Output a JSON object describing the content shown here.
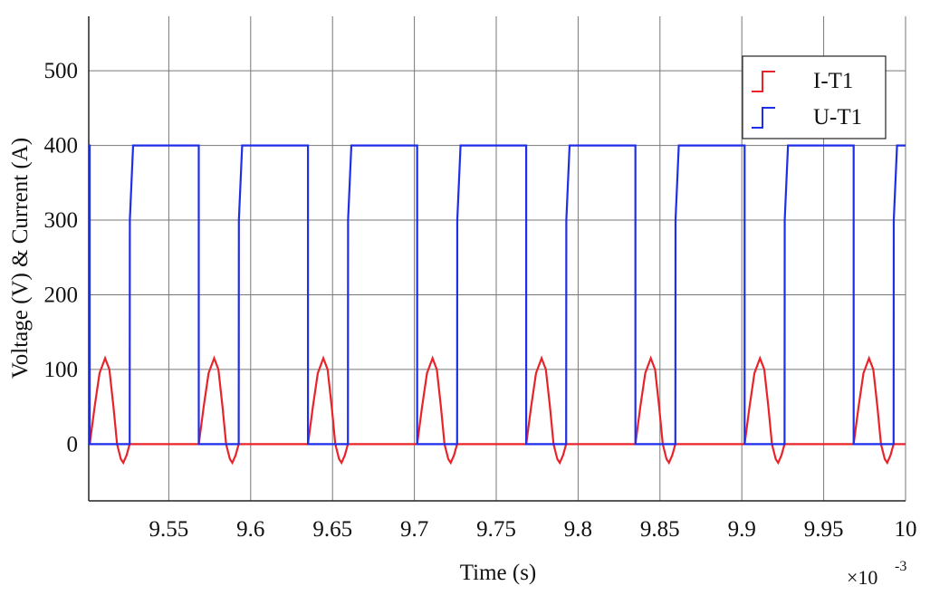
{
  "chart_data": {
    "type": "line",
    "xlabel": "Time (s)",
    "ylabel": "Voltage (V) & Current (A)",
    "x_multiplier": "×10",
    "x_multiplier_exponent": "-3",
    "xlim": [
      9.5011,
      10
    ],
    "ylim": [
      -76,
      573
    ],
    "xticks": [
      9.55,
      9.6,
      9.65,
      9.7,
      9.75,
      9.8,
      9.85,
      9.9,
      9.95,
      10
    ],
    "yticks": [
      0,
      100,
      200,
      300,
      400,
      500
    ],
    "grid": true,
    "legend": "upper right",
    "series": [
      {
        "name": "I-T1",
        "color": "#e8232a",
        "x": [
          9.5011,
          9.5017,
          9.5047,
          9.5077,
          9.5111,
          9.5137,
          9.5162,
          9.5184,
          9.5207,
          9.5222,
          9.5242,
          9.5261,
          9.5683,
          9.5713,
          9.5743,
          9.5777,
          9.5803,
          9.5828,
          9.585,
          9.5873,
          9.5888,
          9.5908,
          9.5927,
          9.635,
          9.638,
          9.641,
          9.6444,
          9.647,
          9.6495,
          9.6517,
          9.654,
          9.6555,
          9.6575,
          9.6594,
          9.7017,
          9.7047,
          9.7077,
          9.7111,
          9.7137,
          9.7162,
          9.7184,
          9.7207,
          9.7222,
          9.7242,
          9.7261,
          9.7683,
          9.7713,
          9.7743,
          9.7777,
          9.7803,
          9.7828,
          9.785,
          9.7873,
          9.7888,
          9.7908,
          9.7927,
          9.835,
          9.838,
          9.841,
          9.8444,
          9.847,
          9.8495,
          9.8517,
          9.854,
          9.8555,
          9.8575,
          9.8594,
          9.9017,
          9.9047,
          9.9077,
          9.9111,
          9.9137,
          9.9162,
          9.9184,
          9.9207,
          9.9222,
          9.9242,
          9.9261,
          9.9683,
          9.9713,
          9.9743,
          9.9777,
          9.9803,
          9.9828,
          9.985,
          9.9873,
          9.9888,
          9.9908,
          9.9927,
          10
        ],
        "values": [
          0,
          0,
          50,
          95,
          115,
          100,
          50,
          0,
          -20,
          -25,
          -15,
          0,
          0,
          50,
          95,
          115,
          100,
          50,
          0,
          -20,
          -25,
          -15,
          0,
          0,
          50,
          95,
          115,
          100,
          50,
          0,
          -20,
          -25,
          -15,
          0,
          0,
          50,
          95,
          115,
          100,
          50,
          0,
          -20,
          -25,
          -15,
          0,
          0,
          50,
          95,
          115,
          100,
          50,
          0,
          -20,
          -25,
          -15,
          0,
          0,
          50,
          95,
          115,
          100,
          50,
          0,
          -20,
          -25,
          -15,
          0,
          0,
          50,
          95,
          115,
          100,
          50,
          0,
          -20,
          -25,
          -15,
          0,
          0,
          50,
          95,
          115,
          100,
          50,
          0,
          -20,
          -25,
          -15,
          0,
          0
        ]
      },
      {
        "name": "U-T1",
        "color": "#1f2ee8",
        "x": [
          9.5011,
          9.5017,
          9.5017,
          9.5261,
          9.5262,
          9.5282,
          9.5683,
          9.5683,
          9.5927,
          9.5928,
          9.5948,
          9.635,
          9.635,
          9.6594,
          9.6595,
          9.6615,
          9.7017,
          9.7017,
          9.7261,
          9.7262,
          9.7282,
          9.7683,
          9.7683,
          9.7927,
          9.7928,
          9.7948,
          9.835,
          9.835,
          9.8594,
          9.8595,
          9.8615,
          9.9017,
          9.9017,
          9.9261,
          9.9262,
          9.9282,
          9.9683,
          9.9683,
          9.9927,
          9.9928,
          9.9948,
          10
        ],
        "values": [
          400,
          400,
          0,
          0,
          300,
          400,
          400,
          0,
          0,
          300,
          400,
          400,
          0,
          0,
          300,
          400,
          400,
          0,
          0,
          300,
          400,
          400,
          0,
          0,
          300,
          400,
          400,
          0,
          0,
          300,
          400,
          400,
          0,
          0,
          300,
          400,
          400,
          0,
          0,
          300,
          400,
          400
        ]
      }
    ]
  }
}
